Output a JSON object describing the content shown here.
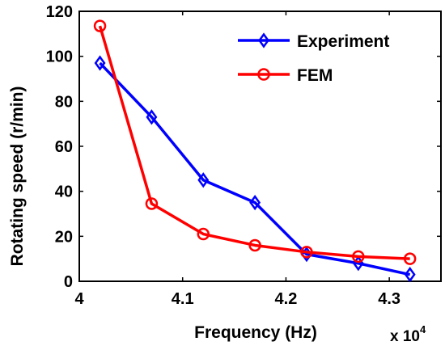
{
  "chart_data": {
    "type": "line",
    "xlabel": "Frequency (Hz)",
    "ylabel": "Rotating speed (r/min)",
    "x_multiplier_base": "x 10",
    "x_multiplier_exponent": "4",
    "xlim": [
      4.0,
      4.35
    ],
    "ylim": [
      0,
      120
    ],
    "x_ticks": [
      4.0,
      4.1,
      4.2,
      4.3
    ],
    "x_tick_labels": [
      "4",
      "4.1",
      "4.2",
      "4.3"
    ],
    "y_ticks": [
      0,
      20,
      40,
      60,
      80,
      100,
      120
    ],
    "y_tick_labels": [
      "0",
      "20",
      "40",
      "60",
      "80",
      "100",
      "120"
    ],
    "grid": false,
    "legend_position": "top-right",
    "series": [
      {
        "name": "Experiment",
        "color": "#0000ff",
        "marker": "diamond",
        "x": [
          4.02,
          4.07,
          4.12,
          4.17,
          4.22,
          4.27,
          4.32
        ],
        "y": [
          97,
          73,
          45,
          35,
          12,
          8,
          3
        ]
      },
      {
        "name": "FEM",
        "color": "#ff0000",
        "marker": "circle",
        "x": [
          4.02,
          4.07,
          4.12,
          4.17,
          4.22,
          4.27,
          4.32
        ],
        "y": [
          113.5,
          34.5,
          21,
          16,
          13,
          11,
          10
        ]
      }
    ]
  }
}
